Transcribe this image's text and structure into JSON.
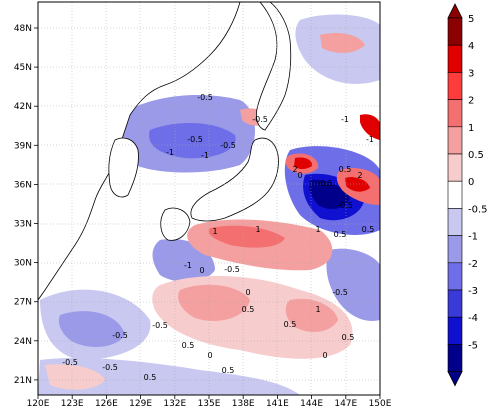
{
  "map": {
    "lon_ticks": [
      "120E",
      "123E",
      "126E",
      "129E",
      "132E",
      "135E",
      "138E",
      "141E",
      "144E",
      "147E",
      "150E"
    ],
    "lat_ticks": [
      "48N",
      "45N",
      "42N",
      "39N",
      "36N",
      "33N",
      "30N",
      "27N",
      "24N",
      "21N"
    ],
    "contour_labels": [
      "-0.5",
      "-0.5",
      "-0.5",
      "-0.5",
      "-1",
      "-1",
      "-1",
      "-1",
      "-0.5",
      "-0.5",
      "0",
      "0.5",
      "1",
      "1",
      "2",
      "2",
      "1",
      "0.5",
      "0.5",
      "0",
      "-0.5",
      "-1",
      "-0.5",
      "-0.5",
      "0",
      "0.5",
      "0.5",
      "1",
      "-0.5",
      "0.5",
      "0",
      "0.5",
      "0",
      "0.5",
      "-0.5",
      "-0.5",
      "0.5"
    ]
  },
  "colorbar": {
    "labels": [
      "5",
      "4",
      "3",
      "2",
      "1",
      "0.5",
      "0",
      "-0.5",
      "-1",
      "-2",
      "-3",
      "-4",
      "-5"
    ],
    "colors": [
      "#8b0000",
      "#e00000",
      "#ff3c3c",
      "#f47070",
      "#f4a0a0",
      "#f7cccc",
      "#ffffff",
      "#c8c8f0",
      "#9a9ae8",
      "#6e6ee8",
      "#3a3ad8",
      "#1010d0",
      "#00008b"
    ]
  }
}
